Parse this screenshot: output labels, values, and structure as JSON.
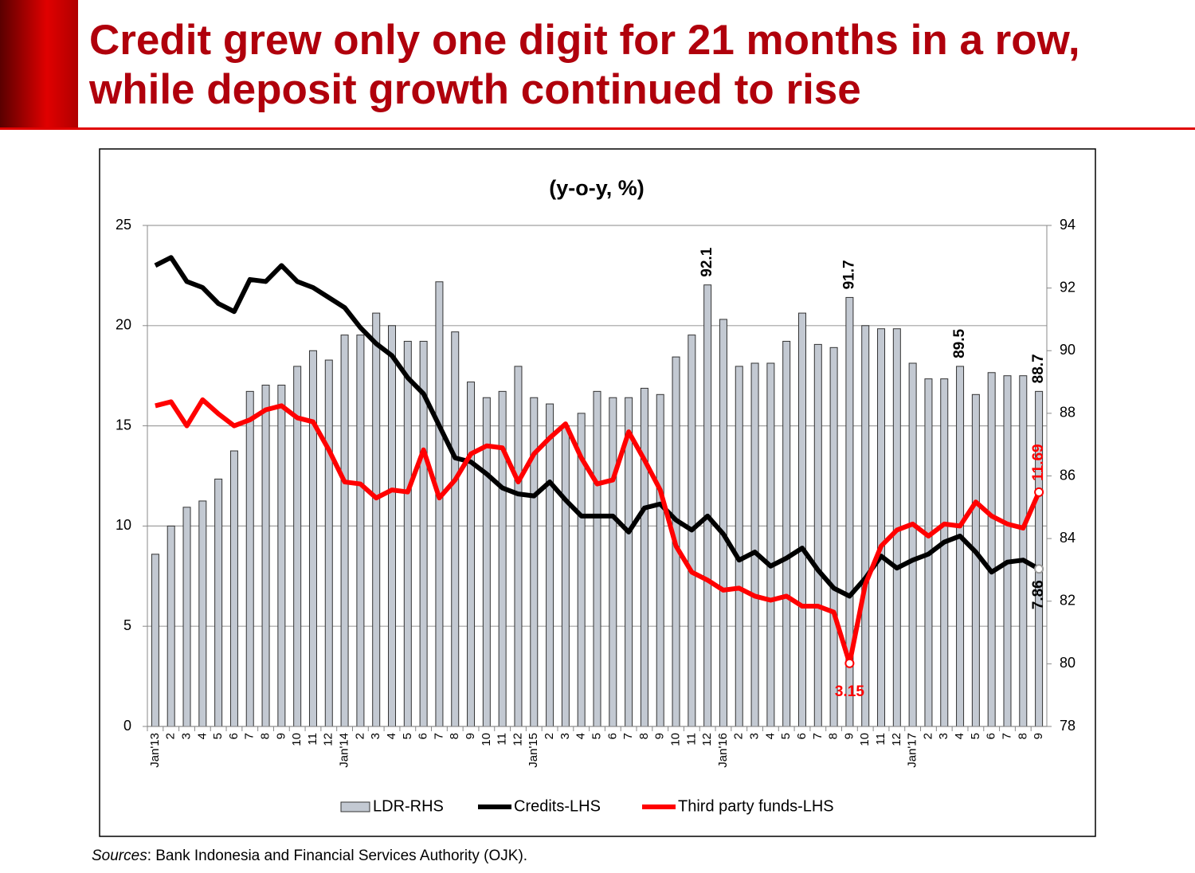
{
  "title": "Credit grew only one digit for 21 months in a row, while deposit growth continued to rise",
  "source": {
    "label": "Sources",
    "text": ": Bank Indonesia and Financial Services Authority (OJK)."
  },
  "chart_data": {
    "type": "combo",
    "title": "(y-o-y, %)",
    "categories": [
      "Jan'13",
      "2",
      "3",
      "4",
      "5",
      "6",
      "7",
      "8",
      "9",
      "10",
      "11",
      "12",
      "Jan'14",
      "2",
      "3",
      "4",
      "5",
      "6",
      "7",
      "8",
      "9",
      "10",
      "11",
      "12",
      "Jan'15",
      "2",
      "3",
      "4",
      "5",
      "6",
      "7",
      "8",
      "9",
      "10",
      "11",
      "12",
      "Jan'16",
      "2",
      "3",
      "4",
      "5",
      "6",
      "7",
      "8",
      "9",
      "10",
      "11",
      "12",
      "Jan'17",
      "2",
      "3",
      "4",
      "5",
      "6",
      "7",
      "8",
      "9"
    ],
    "ylim": [
      0,
      25
    ],
    "yticks": [
      0,
      5,
      10,
      15,
      20,
      25
    ],
    "y2lim": [
      78,
      94
    ],
    "y2ticks": [
      78,
      80,
      82,
      84,
      86,
      88,
      90,
      92,
      94
    ],
    "grid": true,
    "legend": "bottom",
    "series": [
      {
        "name": "LDR-RHS",
        "type": "bar",
        "axis": "y2",
        "color": "#c3c9d2",
        "values": [
          83.5,
          84.4,
          85.0,
          85.2,
          85.9,
          86.8,
          88.7,
          88.9,
          88.9,
          89.5,
          90.0,
          89.7,
          90.5,
          90.5,
          91.2,
          90.8,
          90.3,
          90.3,
          92.2,
          90.6,
          89.0,
          88.5,
          88.7,
          89.5,
          88.5,
          88.3,
          87.6,
          88.0,
          88.7,
          88.5,
          88.5,
          88.8,
          88.6,
          89.8,
          90.5,
          92.1,
          91.0,
          89.5,
          89.6,
          89.6,
          90.3,
          91.2,
          90.2,
          90.1,
          91.7,
          90.8,
          90.7,
          90.7,
          89.6,
          89.1,
          89.1,
          89.5,
          88.6,
          89.3,
          89.2,
          89.2,
          88.7
        ],
        "value_labels": [
          null,
          null,
          null,
          null,
          null,
          null,
          null,
          null,
          null,
          null,
          null,
          null,
          null,
          null,
          null,
          null,
          null,
          null,
          null,
          null,
          null,
          null,
          null,
          null,
          null,
          null,
          null,
          null,
          null,
          null,
          null,
          null,
          null,
          null,
          null,
          "92.1",
          null,
          null,
          null,
          null,
          null,
          null,
          null,
          null,
          "91.7",
          null,
          null,
          null,
          null,
          null,
          null,
          "89.5",
          null,
          null,
          null,
          null,
          "88.7"
        ]
      },
      {
        "name": "Credits-LHS",
        "type": "line",
        "color": "#000000",
        "values": [
          23.0,
          23.4,
          22.2,
          21.9,
          21.1,
          20.7,
          22.3,
          22.2,
          23.0,
          22.2,
          21.9,
          21.4,
          20.9,
          19.9,
          19.1,
          18.5,
          17.4,
          16.6,
          15.0,
          13.4,
          13.2,
          12.6,
          11.9,
          11.6,
          11.5,
          12.2,
          11.3,
          10.5,
          10.5,
          10.5,
          9.7,
          10.9,
          11.1,
          10.3,
          9.8,
          10.5,
          9.6,
          8.3,
          8.7,
          8.0,
          8.4,
          8.9,
          7.8,
          6.9,
          6.5,
          7.4,
          8.5,
          7.9,
          8.3,
          8.6,
          9.2,
          9.5,
          8.7,
          7.7,
          8.2,
          8.3,
          7.86
        ],
        "value_labels": [
          null,
          null,
          null,
          null,
          null,
          null,
          null,
          null,
          null,
          null,
          null,
          null,
          null,
          null,
          null,
          null,
          null,
          null,
          null,
          null,
          null,
          null,
          null,
          null,
          null,
          null,
          null,
          null,
          null,
          null,
          null,
          null,
          null,
          null,
          null,
          null,
          null,
          null,
          null,
          null,
          null,
          null,
          null,
          null,
          null,
          null,
          null,
          null,
          null,
          null,
          null,
          null,
          null,
          null,
          null,
          null,
          "7.86"
        ]
      },
      {
        "name": "Third party funds-LHS",
        "type": "line",
        "color": "#ff0000",
        "values": [
          16.0,
          16.2,
          15.0,
          16.3,
          15.6,
          15.0,
          15.3,
          15.8,
          16.0,
          15.4,
          15.2,
          13.8,
          12.2,
          12.1,
          11.4,
          11.8,
          11.7,
          13.8,
          11.4,
          12.3,
          13.6,
          14.0,
          13.9,
          12.2,
          13.6,
          14.4,
          15.1,
          13.4,
          12.1,
          12.3,
          14.7,
          13.3,
          11.8,
          9.0,
          7.7,
          7.3,
          6.8,
          6.9,
          6.5,
          6.3,
          6.5,
          6.0,
          6.0,
          5.7,
          3.15,
          7.1,
          9.0,
          9.8,
          10.1,
          9.5,
          10.1,
          10.0,
          11.2,
          10.5,
          10.1,
          9.9,
          11.69
        ],
        "value_labels": [
          null,
          null,
          null,
          null,
          null,
          null,
          null,
          null,
          null,
          null,
          null,
          null,
          null,
          null,
          null,
          null,
          null,
          null,
          null,
          null,
          null,
          null,
          null,
          null,
          null,
          null,
          null,
          null,
          null,
          null,
          null,
          null,
          null,
          null,
          null,
          null,
          null,
          null,
          null,
          null,
          null,
          null,
          null,
          null,
          "3.15",
          null,
          null,
          null,
          null,
          null,
          null,
          null,
          null,
          null,
          null,
          null,
          "11.69"
        ]
      }
    ]
  }
}
